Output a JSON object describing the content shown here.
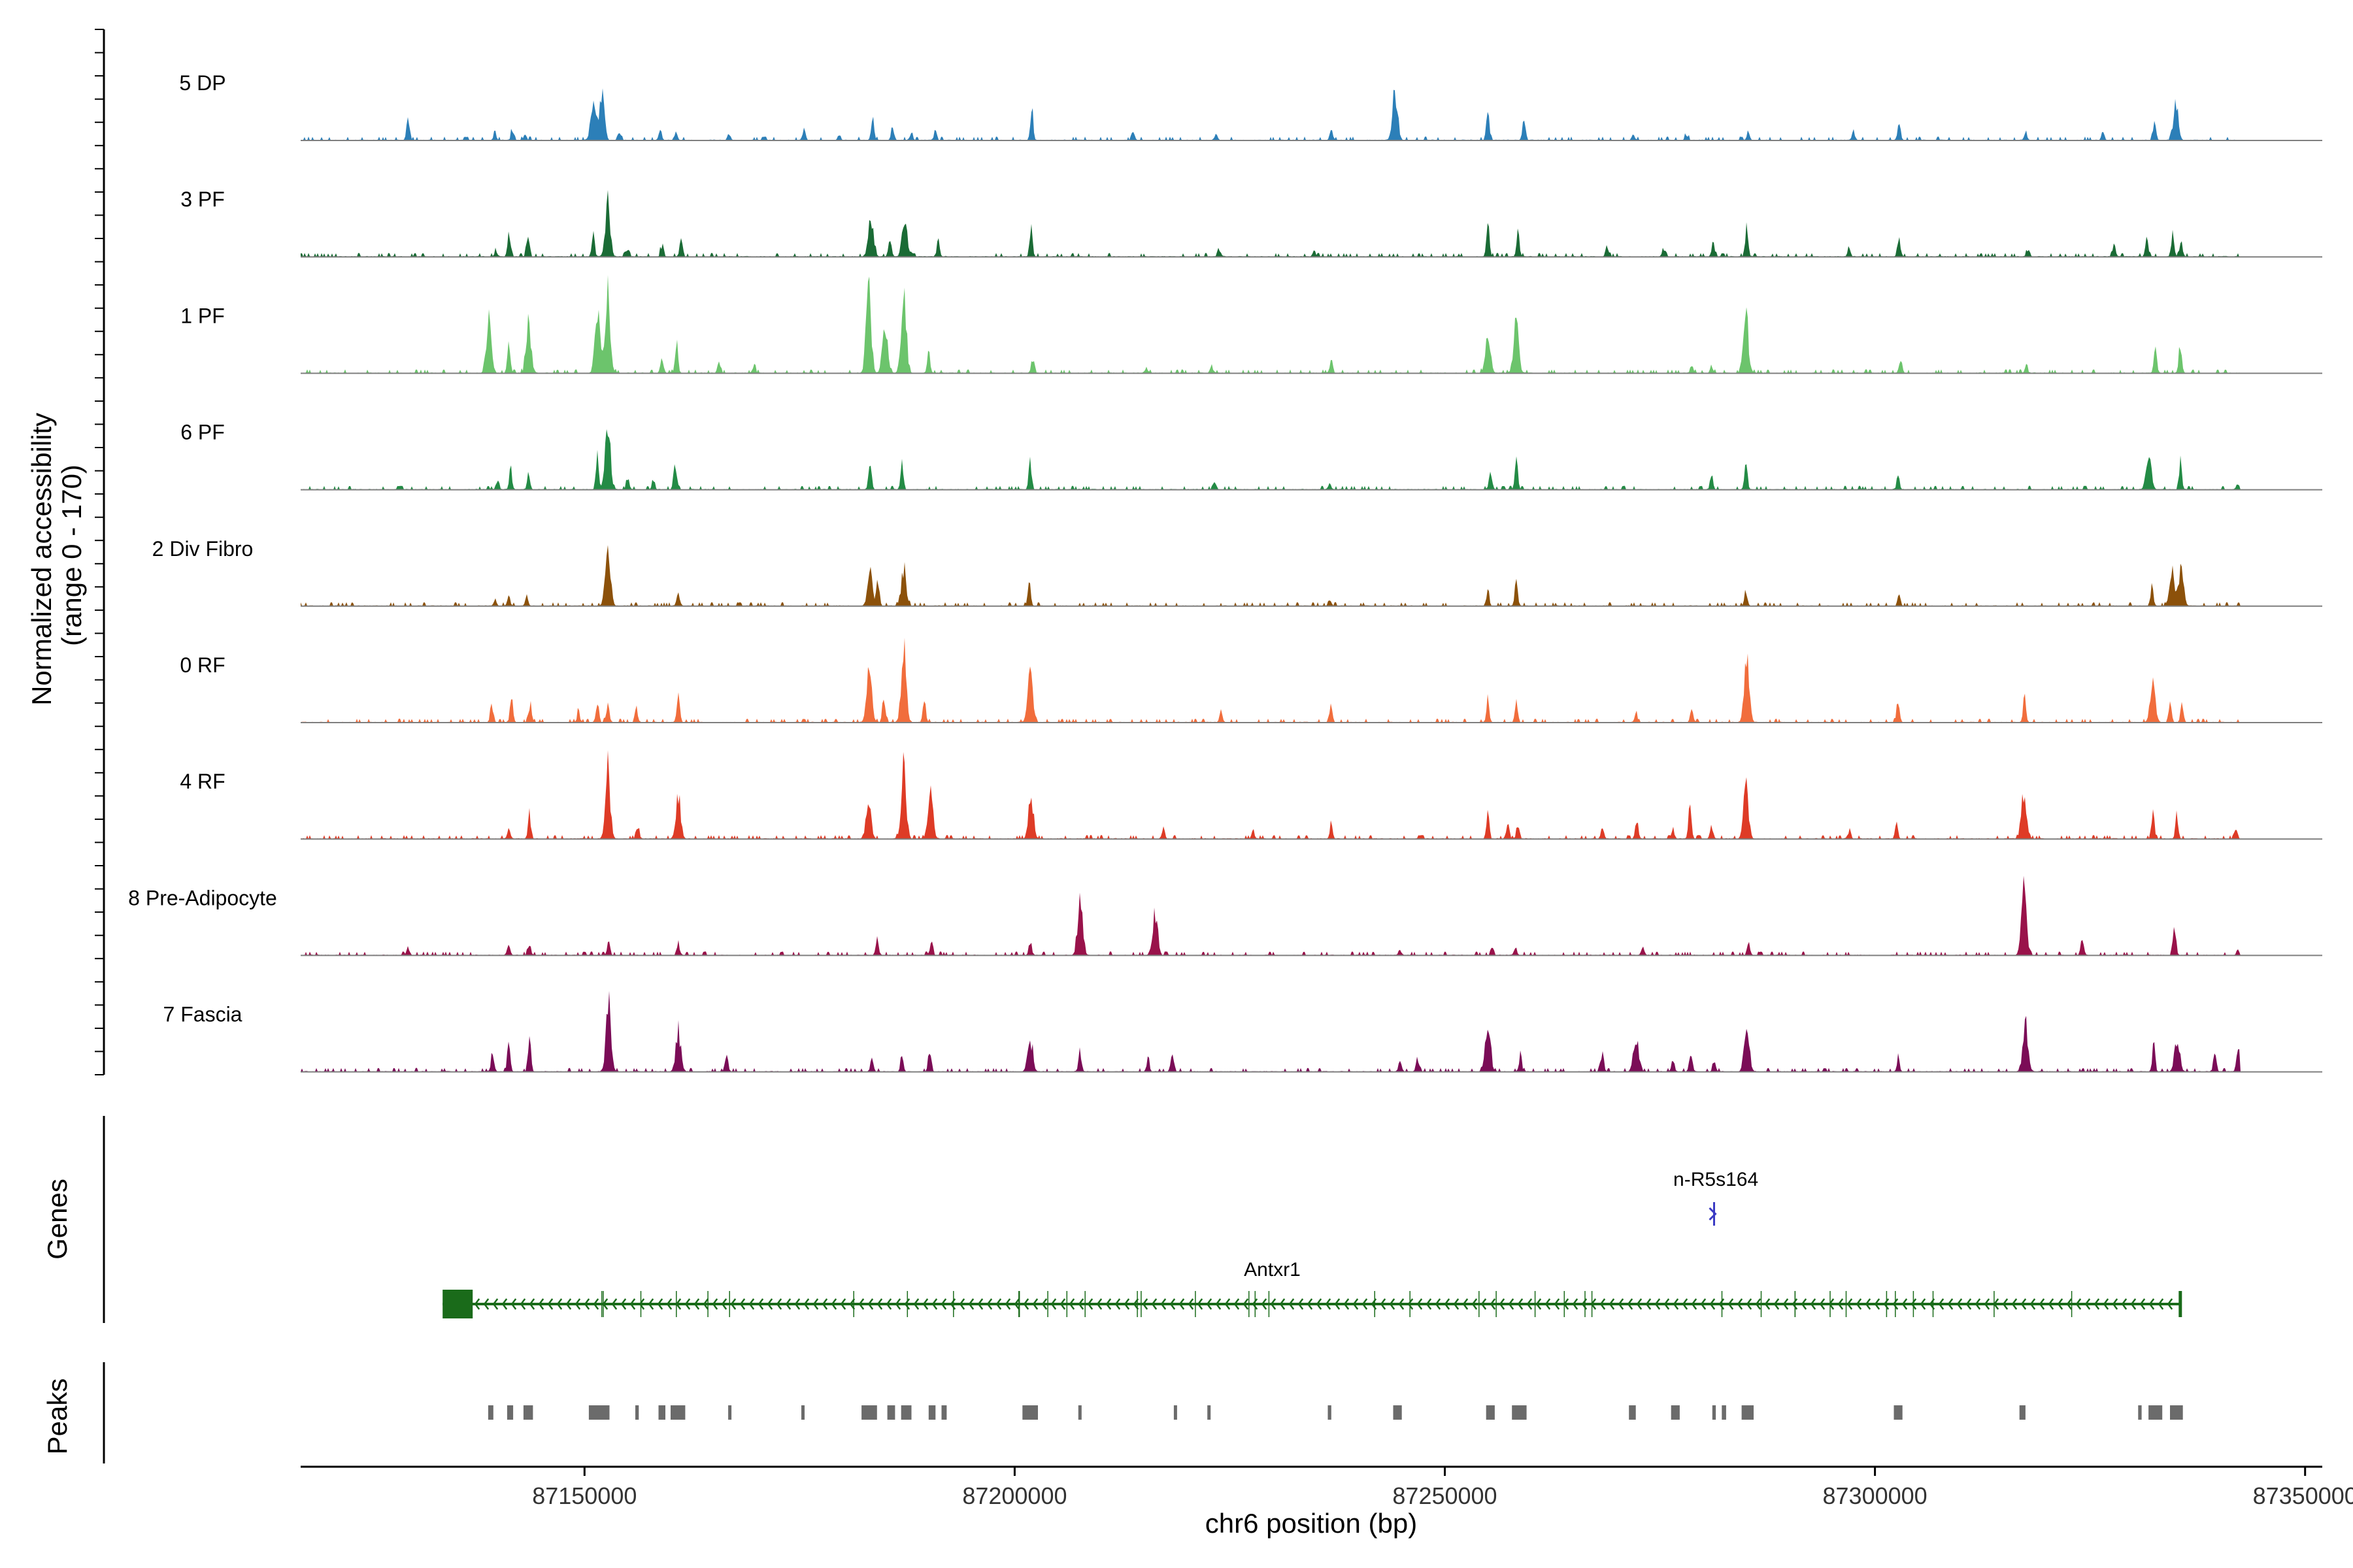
{
  "chart_data": {
    "type": "coverage-track",
    "title": "",
    "xlabel": "chr6 position (bp)",
    "ylabel": "Normalized accessibility\n(range 0 - 170)",
    "ylabel_lines": [
      "Normalized accessibility",
      "(range 0 - 170)"
    ],
    "yrange": [
      0,
      170
    ],
    "xlim": [
      87117000,
      87352000
    ],
    "xticks": [
      87150000,
      87200000,
      87250000,
      87300000,
      87350000
    ],
    "xtick_labels": [
      "87150000",
      "87200000",
      "87250000",
      "87300000",
      "87350000"
    ],
    "tracks": [
      {
        "name": "5 DP",
        "color": "#2c7fb8",
        "peaks": [
          [
            87129500,
            45
          ],
          [
            87139600,
            12
          ],
          [
            87141600,
            18
          ],
          [
            87143100,
            10
          ],
          [
            87151000,
            70
          ],
          [
            87152000,
            95
          ],
          [
            87154000,
            18
          ],
          [
            87158800,
            22
          ],
          [
            87160600,
            16
          ],
          [
            87166800,
            14
          ],
          [
            87175500,
            20
          ],
          [
            87179600,
            10
          ],
          [
            87183500,
            40
          ],
          [
            87185800,
            25
          ],
          [
            87188000,
            18
          ],
          [
            87190800,
            15
          ],
          [
            87202000,
            60
          ],
          [
            87213800,
            12
          ],
          [
            87223400,
            12
          ],
          [
            87236800,
            20
          ],
          [
            87244200,
            100
          ],
          [
            87255000,
            55
          ],
          [
            87259200,
            48
          ],
          [
            87271900,
            10
          ],
          [
            87278100,
            10
          ],
          [
            87285300,
            14
          ],
          [
            87297500,
            15
          ],
          [
            87302800,
            35
          ],
          [
            87317500,
            12
          ],
          [
            87326500,
            18
          ],
          [
            87332500,
            38
          ],
          [
            87335000,
            72
          ]
        ]
      },
      {
        "name": "3 PF",
        "color": "#1a6b35",
        "peaks": [
          [
            87139700,
            10
          ],
          [
            87141200,
            55
          ],
          [
            87143400,
            40
          ],
          [
            87151000,
            45
          ],
          [
            87152700,
            110
          ],
          [
            87155000,
            15
          ],
          [
            87159000,
            22
          ],
          [
            87161200,
            30
          ],
          [
            87183300,
            80
          ],
          [
            87185500,
            40
          ],
          [
            87187200,
            75
          ],
          [
            87191100,
            30
          ],
          [
            87201900,
            60
          ],
          [
            87223800,
            12
          ],
          [
            87234800,
            12
          ],
          [
            87255000,
            60
          ],
          [
            87258500,
            50
          ],
          [
            87268900,
            20
          ],
          [
            87275400,
            15
          ],
          [
            87281200,
            30
          ],
          [
            87285100,
            55
          ],
          [
            87297000,
            15
          ],
          [
            87302800,
            35
          ],
          [
            87317700,
            12
          ],
          [
            87327800,
            22
          ],
          [
            87331600,
            40
          ],
          [
            87334600,
            45
          ],
          [
            87335600,
            28
          ]
        ]
      },
      {
        "name": "1 PF",
        "color": "#6cc46c",
        "peaks": [
          [
            87138900,
            110
          ],
          [
            87141200,
            55
          ],
          [
            87143500,
            100
          ],
          [
            87151500,
            120
          ],
          [
            87152700,
            165
          ],
          [
            87159000,
            35
          ],
          [
            87160700,
            50
          ],
          [
            87165600,
            20
          ],
          [
            87169700,
            15
          ],
          [
            87183000,
            170
          ],
          [
            87184900,
            100
          ],
          [
            87187100,
            170
          ],
          [
            87190000,
            45
          ],
          [
            87202100,
            28
          ],
          [
            87215300,
            12
          ],
          [
            87222900,
            15
          ],
          [
            87236800,
            25
          ],
          [
            87255000,
            80
          ],
          [
            87258300,
            105
          ],
          [
            87278700,
            15
          ],
          [
            87281000,
            15
          ],
          [
            87285000,
            115
          ],
          [
            87303000,
            30
          ],
          [
            87317600,
            15
          ],
          [
            87332600,
            50
          ],
          [
            87335500,
            55
          ]
        ]
      },
      {
        "name": "6 PF",
        "color": "#238b45",
        "peaks": [
          [
            87139900,
            20
          ],
          [
            87141400,
            40
          ],
          [
            87143500,
            30
          ],
          [
            87151500,
            60
          ],
          [
            87152700,
            135
          ],
          [
            87155000,
            25
          ],
          [
            87158000,
            20
          ],
          [
            87160500,
            50
          ],
          [
            87183200,
            60
          ],
          [
            87186900,
            55
          ],
          [
            87201800,
            60
          ],
          [
            87223300,
            10
          ],
          [
            87236600,
            12
          ],
          [
            87255300,
            40
          ],
          [
            87258300,
            60
          ],
          [
            87281000,
            25
          ],
          [
            87285000,
            55
          ],
          [
            87302700,
            30
          ],
          [
            87331800,
            80
          ],
          [
            87335500,
            55
          ],
          [
            87342200,
            12
          ]
        ]
      },
      {
        "name": "2 Div Fibro",
        "color": "#8c510a",
        "peaks": [
          [
            87139600,
            12
          ],
          [
            87141200,
            18
          ],
          [
            87143300,
            20
          ],
          [
            87152700,
            120
          ],
          [
            87160900,
            30
          ],
          [
            87183200,
            65
          ],
          [
            87184100,
            55
          ],
          [
            87187100,
            70
          ],
          [
            87201700,
            50
          ],
          [
            87236600,
            15
          ],
          [
            87255000,
            30
          ],
          [
            87258300,
            45
          ],
          [
            87285000,
            30
          ],
          [
            87302800,
            20
          ],
          [
            87332200,
            40
          ],
          [
            87334500,
            70
          ],
          [
            87335600,
            80
          ]
        ]
      },
      {
        "name": "0 RF",
        "color": "#f16d3c",
        "peaks": [
          [
            87139200,
            40
          ],
          [
            87141500,
            60
          ],
          [
            87143700,
            40
          ],
          [
            87149300,
            20
          ],
          [
            87151500,
            40
          ],
          [
            87152700,
            40
          ],
          [
            87156000,
            25
          ],
          [
            87160900,
            60
          ],
          [
            87183100,
            110
          ],
          [
            87184800,
            55
          ],
          [
            87187100,
            140
          ],
          [
            87189500,
            40
          ],
          [
            87201800,
            100
          ],
          [
            87224000,
            20
          ],
          [
            87236800,
            30
          ],
          [
            87255000,
            40
          ],
          [
            87258300,
            45
          ],
          [
            87272200,
            15
          ],
          [
            87278700,
            20
          ],
          [
            87285100,
            115
          ],
          [
            87302700,
            45
          ],
          [
            87317400,
            50
          ],
          [
            87332300,
            80
          ],
          [
            87334300,
            45
          ],
          [
            87335700,
            40
          ]
        ]
      },
      {
        "name": "4 RF",
        "color": "#de3b26",
        "peaks": [
          [
            87141200,
            20
          ],
          [
            87143600,
            50
          ],
          [
            87152700,
            135
          ],
          [
            87156200,
            25
          ],
          [
            87160900,
            80
          ],
          [
            87183000,
            80
          ],
          [
            87187100,
            135
          ],
          [
            87190200,
            95
          ],
          [
            87201900,
            80
          ],
          [
            87217300,
            20
          ],
          [
            87227700,
            15
          ],
          [
            87236800,
            25
          ],
          [
            87255000,
            45
          ],
          [
            87257300,
            25
          ],
          [
            87258500,
            30
          ],
          [
            87268300,
            25
          ],
          [
            87272300,
            40
          ],
          [
            87276500,
            20
          ],
          [
            87278500,
            60
          ],
          [
            87281000,
            25
          ],
          [
            87285000,
            100
          ],
          [
            87297000,
            15
          ],
          [
            87302500,
            35
          ],
          [
            87317300,
            90
          ],
          [
            87332300,
            60
          ],
          [
            87335100,
            45
          ],
          [
            87342000,
            15
          ]
        ]
      },
      {
        "name": "8 Pre-Adipocyte",
        "color": "#99124a",
        "peaks": [
          [
            87129500,
            15
          ],
          [
            87141200,
            20
          ],
          [
            87143600,
            25
          ],
          [
            87152800,
            25
          ],
          [
            87160900,
            25
          ],
          [
            87184000,
            30
          ],
          [
            87190300,
            25
          ],
          [
            87201800,
            30
          ],
          [
            87207600,
            110
          ],
          [
            87216300,
            85
          ],
          [
            87244800,
            10
          ],
          [
            87255500,
            20
          ],
          [
            87258200,
            15
          ],
          [
            87273000,
            15
          ],
          [
            87285300,
            20
          ],
          [
            87317300,
            140
          ],
          [
            87324100,
            40
          ],
          [
            87334800,
            60
          ],
          [
            87342200,
            10
          ]
        ]
      },
      {
        "name": "7 Fascia",
        "color": "#7b0c57",
        "peaks": [
          [
            87139300,
            40
          ],
          [
            87141200,
            55
          ],
          [
            87143600,
            60
          ],
          [
            87152800,
            130
          ],
          [
            87160900,
            80
          ],
          [
            87166500,
            40
          ],
          [
            87183400,
            30
          ],
          [
            87186900,
            30
          ],
          [
            87190100,
            40
          ],
          [
            87201800,
            65
          ],
          [
            87207600,
            40
          ],
          [
            87215500,
            25
          ],
          [
            87218300,
            30
          ],
          [
            87244800,
            20
          ],
          [
            87246800,
            25
          ],
          [
            87255000,
            100
          ],
          [
            87258800,
            30
          ],
          [
            87268300,
            40
          ],
          [
            87272200,
            70
          ],
          [
            87276500,
            20
          ],
          [
            87278600,
            40
          ],
          [
            87281300,
            20
          ],
          [
            87285100,
            95
          ],
          [
            87302700,
            25
          ],
          [
            87317500,
            90
          ],
          [
            87332400,
            55
          ],
          [
            87335100,
            65
          ],
          [
            87339500,
            35
          ],
          [
            87342200,
            60
          ]
        ]
      }
    ],
    "genes": [
      {
        "name": "n-R5s164",
        "start": 87281300,
        "end": 87281700,
        "strand": "+",
        "color": "#3b3bc4",
        "row": 1
      },
      {
        "name": "Antxr1",
        "start": 87133500,
        "end": 87335500,
        "strand": "-",
        "color": "#1a6b1a",
        "row": 2
      }
    ],
    "peaks_regions": [
      [
        87138800,
        87139400
      ],
      [
        87141000,
        87141700
      ],
      [
        87142900,
        87144000
      ],
      [
        87150500,
        87152900
      ],
      [
        87155900,
        87156300
      ],
      [
        87158600,
        87159400
      ],
      [
        87160000,
        87161700
      ],
      [
        87166700,
        87167000
      ],
      [
        87175200,
        87175500
      ],
      [
        87182200,
        87184000
      ],
      [
        87185200,
        87186100
      ],
      [
        87186800,
        87188000
      ],
      [
        87190000,
        87190800
      ],
      [
        87191500,
        87192100
      ],
      [
        87200900,
        87202700
      ],
      [
        87207400,
        87207700
      ],
      [
        87218500,
        87218800
      ],
      [
        87222400,
        87222700
      ],
      [
        87236400,
        87236800
      ],
      [
        87244000,
        87245000
      ],
      [
        87254800,
        87255800
      ],
      [
        87257800,
        87259500
      ],
      [
        87271400,
        87272200
      ],
      [
        87276300,
        87277300
      ],
      [
        87281100,
        87281500
      ],
      [
        87282200,
        87282700
      ],
      [
        87284500,
        87285900
      ],
      [
        87302200,
        87303200
      ],
      [
        87316800,
        87317500
      ],
      [
        87330600,
        87331000
      ],
      [
        87331800,
        87333400
      ],
      [
        87334300,
        87335800
      ]
    ],
    "panel_labels": {
      "genes": "Genes",
      "peaks": "Peaks"
    }
  }
}
